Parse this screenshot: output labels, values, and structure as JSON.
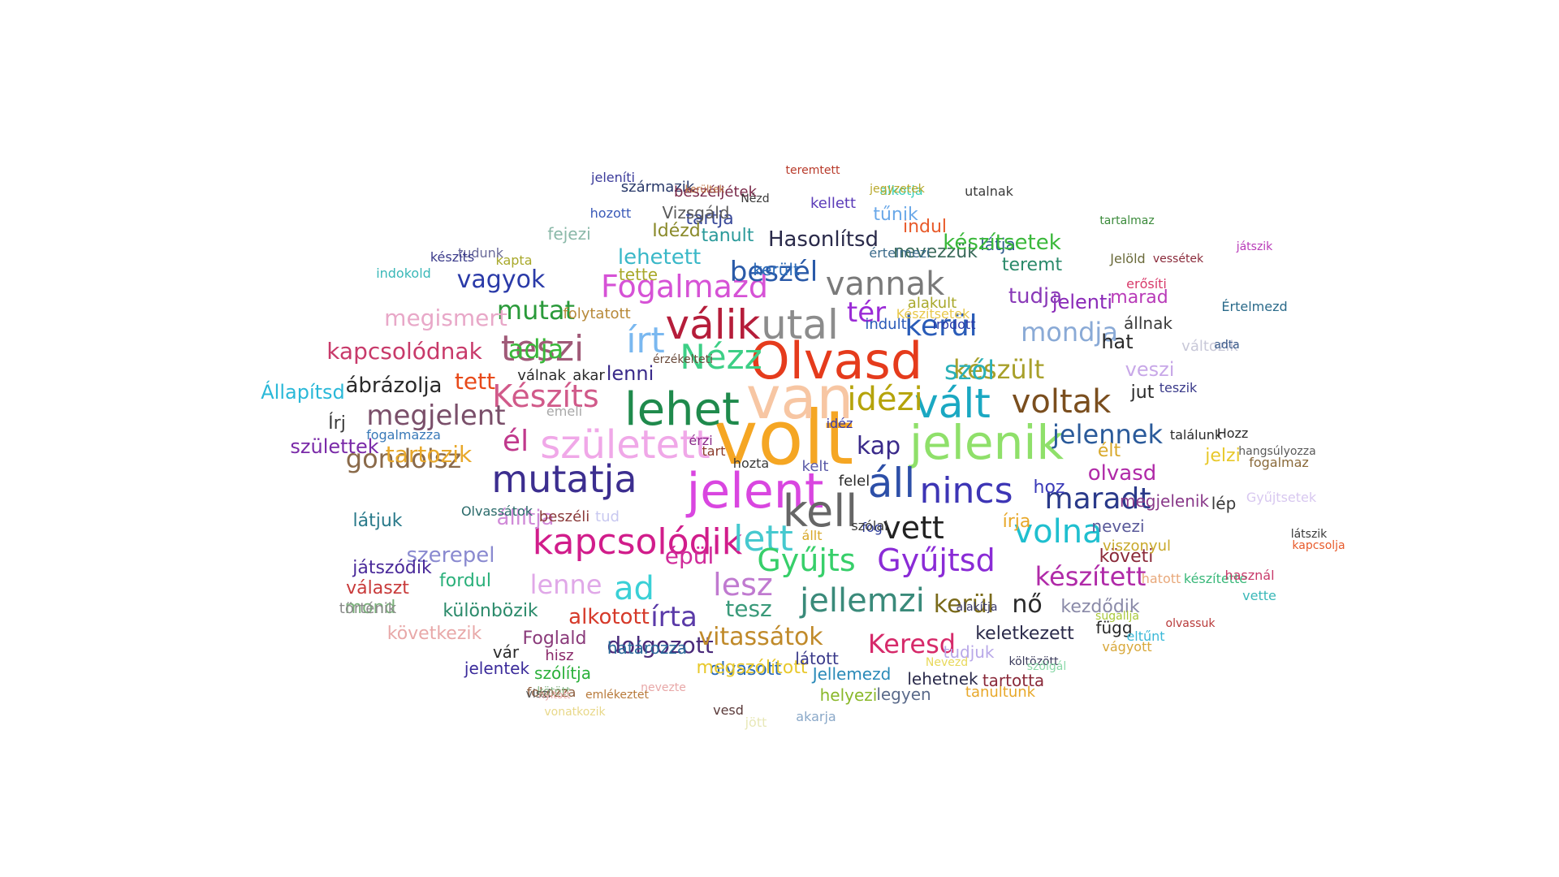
{
  "words": [
    {
      "text": "volt",
      "color": "#f5a623"
    },
    {
      "text": "van",
      "color": "#f7c6a3"
    },
    {
      "text": "Olvasd",
      "color": "#e53b1c"
    },
    {
      "text": "jelent",
      "color": "#d946e0"
    },
    {
      "text": "kell",
      "color": "#666666"
    },
    {
      "text": "lehet",
      "color": "#1f8a4c"
    },
    {
      "text": "jelenik",
      "color": "#8fe06a"
    },
    {
      "text": "mutatja",
      "color": "#3c2e8f"
    },
    {
      "text": "született",
      "color": "#f0a8e8"
    },
    {
      "text": "kapcsolódik",
      "color": "#d11d8b"
    },
    {
      "text": "utal",
      "color": "#8c8c8c"
    },
    {
      "text": "válik",
      "color": "#b51d3a"
    },
    {
      "text": "vált",
      "color": "#1aa8c2"
    },
    {
      "text": "áll",
      "color": "#2d4fa8"
    },
    {
      "text": "nincs",
      "color": "#3d35b5"
    },
    {
      "text": "teszi",
      "color": "#a05a78"
    },
    {
      "text": "írt",
      "color": "#7ab8f0"
    },
    {
      "text": "vannak",
      "color": "#7a7a7a"
    },
    {
      "text": "Nézz",
      "color": "#3dcf86"
    },
    {
      "text": "voltak",
      "color": "#7a4e1e"
    },
    {
      "text": "idézi",
      "color": "#b5a30a"
    },
    {
      "text": "Fogalmazd",
      "color": "#d652d6"
    },
    {
      "text": "lett",
      "color": "#46c9cf"
    },
    {
      "text": "Gyűjts",
      "color": "#37cf6a"
    },
    {
      "text": "Gyűjtsd",
      "color": "#8a2bd6"
    },
    {
      "text": "vett",
      "color": "#222222"
    },
    {
      "text": "volna",
      "color": "#1fbfcf"
    },
    {
      "text": "jellemzi",
      "color": "#3a8a7a"
    },
    {
      "text": "Készíts",
      "color": "#d15a8a"
    },
    {
      "text": "megjelent",
      "color": "#7a4f6a"
    },
    {
      "text": "gondolsz",
      "color": "#8a6a4a"
    },
    {
      "text": "él",
      "color": "#c0398c"
    },
    {
      "text": "maradt",
      "color": "#2a3a8a"
    },
    {
      "text": "jelennek",
      "color": "#2a5a9a"
    },
    {
      "text": "kerül",
      "color": "#2a5cb8"
    },
    {
      "text": "mondja",
      "color": "#8aaad6"
    },
    {
      "text": "beszél",
      "color": "#2a5aa8"
    },
    {
      "text": "készült",
      "color": "#a8a02a"
    },
    {
      "text": "szól",
      "color": "#2ab0b8"
    },
    {
      "text": "tér",
      "color": "#9a2ad6"
    },
    {
      "text": "kap",
      "color": "#3a2a8a"
    },
    {
      "text": "Keresd",
      "color": "#d62a6a"
    },
    {
      "text": "készített",
      "color": "#b02aa8"
    },
    {
      "text": "kerül",
      "color": "#7a6a1a"
    },
    {
      "text": "nő",
      "color": "#2a2a2a"
    },
    {
      "text": "ad",
      "color": "#3ad0d6"
    },
    {
      "text": "lesz",
      "color": "#c07ad0"
    },
    {
      "text": "írta",
      "color": "#5a3aa8"
    },
    {
      "text": "lenne",
      "color": "#e0a8e8"
    },
    {
      "text": "épül",
      "color": "#d02a9a"
    },
    {
      "text": "alkotott",
      "color": "#d63a2a"
    },
    {
      "text": "dolgozott",
      "color": "#4a2a7a"
    },
    {
      "text": "vitassátok",
      "color": "#c08a2a"
    },
    {
      "text": "tesz",
      "color": "#3a9a7a"
    },
    {
      "text": "adja",
      "color": "#3ab83a"
    },
    {
      "text": "mutat",
      "color": "#2a9a3a"
    },
    {
      "text": "vagyok",
      "color": "#2a3aa8"
    },
    {
      "text": "megismert",
      "color": "#e8a8c8"
    },
    {
      "text": "kapcsolódnak",
      "color": "#c83a6a"
    },
    {
      "text": "ábrázolja",
      "color": "#2a2a2a"
    },
    {
      "text": "tett",
      "color": "#e84a1a"
    },
    {
      "text": "tartozik",
      "color": "#e8a82a"
    },
    {
      "text": "születtek",
      "color": "#7a2aa8"
    },
    {
      "text": "Állapítsd",
      "color": "#2ab8d8"
    },
    {
      "text": "Írj",
      "color": "#3a3a3a"
    },
    {
      "text": "állítja",
      "color": "#d08ad8"
    },
    {
      "text": "látjuk",
      "color": "#2a7a8a"
    },
    {
      "text": "szerepel",
      "color": "#8a8ad0"
    },
    {
      "text": "játszódik",
      "color": "#4a2a9a"
    },
    {
      "text": "mond",
      "color": "#7ab07a"
    },
    {
      "text": "fordul",
      "color": "#2ab07a"
    },
    {
      "text": "választ",
      "color": "#c83a3a"
    },
    {
      "text": "különbözik",
      "color": "#2a8a6a"
    },
    {
      "text": "történik",
      "color": "#8a8a8a"
    },
    {
      "text": "következik",
      "color": "#e8a8a8"
    },
    {
      "text": "Foglald",
      "color": "#8a3a7a"
    },
    {
      "text": "vár",
      "color": "#2a2a2a"
    },
    {
      "text": "hisz",
      "color": "#8a2a6a"
    },
    {
      "text": "jelentek",
      "color": "#3a2a9a"
    },
    {
      "text": "szólítja",
      "color": "#2ab03a"
    },
    {
      "text": "határozza",
      "color": "#2a6a9a"
    },
    {
      "text": "olvasott",
      "color": "#2a6ab8"
    },
    {
      "text": "megszólított",
      "color": "#e8c82a"
    },
    {
      "text": "helyezi",
      "color": "#8ab82a"
    },
    {
      "text": "legyen",
      "color": "#5a6a8a"
    },
    {
      "text": "tanultunk",
      "color": "#e8a82a"
    },
    {
      "text": "Jellemezd",
      "color": "#2a8ab8"
    },
    {
      "text": "látott",
      "color": "#3a3a8a"
    },
    {
      "text": "lehetnek",
      "color": "#2a2a4a"
    },
    {
      "text": "tartotta",
      "color": "#8a2a3a"
    },
    {
      "text": "keletkezett",
      "color": "#2a2a4a"
    },
    {
      "text": "tudjuk",
      "color": "#b8a8e8"
    },
    {
      "text": "függ",
      "color": "#2a2a2a"
    },
    {
      "text": "kezdődik",
      "color": "#8a8aa8"
    },
    {
      "text": "nevezi",
      "color": "#5a5a9a"
    },
    {
      "text": "követi",
      "color": "#8a2a3a"
    },
    {
      "text": "viszonyul",
      "color": "#c8a82a"
    },
    {
      "text": "megjelenik",
      "color": "#8a3a8a"
    },
    {
      "text": "olvasd",
      "color": "#b02aa8"
    },
    {
      "text": "élt",
      "color": "#d8a82a"
    },
    {
      "text": "jelzi",
      "color": "#e8c82a"
    },
    {
      "text": "írja",
      "color": "#e8a82a"
    },
    {
      "text": "hoz",
      "color": "#3a3ab8"
    },
    {
      "text": "jut",
      "color": "#2a2a2a"
    },
    {
      "text": "veszi",
      "color": "#c8a8e8"
    },
    {
      "text": "hat",
      "color": "#2a2a2a"
    },
    {
      "text": "állnak",
      "color": "#3a3a3a"
    },
    {
      "text": "marad",
      "color": "#b83ab8"
    },
    {
      "text": "jelenti",
      "color": "#8a2ab8"
    },
    {
      "text": "tudja",
      "color": "#8a3ab8"
    },
    {
      "text": "teremt",
      "color": "#2a8a6a"
    },
    {
      "text": "látja",
      "color": "#2a5a8a"
    },
    {
      "text": "nevezzük",
      "color": "#3a6a5a"
    },
    {
      "text": "készítsetek",
      "color": "#3ab83a"
    },
    {
      "text": "indul",
      "color": "#e85a2a"
    },
    {
      "text": "Hasonlítsd",
      "color": "#2a2a4a"
    },
    {
      "text": "tűnik",
      "color": "#6aa8e8"
    },
    {
      "text": "kellett",
      "color": "#5a3ab8"
    },
    {
      "text": "tartja",
      "color": "#3a4a9a"
    },
    {
      "text": "tanult",
      "color": "#2a9a9a"
    },
    {
      "text": "Idézd",
      "color": "#8a8a2a"
    },
    {
      "text": "fejezi",
      "color": "#8ab8a8"
    },
    {
      "text": "lehetett",
      "color": "#3ab8c8"
    },
    {
      "text": "Vizsgáld",
      "color": "#5a5a5a"
    },
    {
      "text": "hozott",
      "color": "#3a5ab8"
    },
    {
      "text": "származik",
      "color": "#2a3a6a"
    },
    {
      "text": "beszéljétek",
      "color": "#7a2a4a"
    },
    {
      "text": "jeleníti",
      "color": "#3a3a9a"
    },
    {
      "text": "tette",
      "color": "#a8a82a"
    },
    {
      "text": "került",
      "color": "#2a6ab8"
    },
    {
      "text": "alakult",
      "color": "#a8a82a"
    },
    {
      "text": "indult",
      "color": "#2a5ab8"
    },
    {
      "text": "Készítsetek",
      "color": "#e8c84a"
    },
    {
      "text": "íródott",
      "color": "#2a3aa8"
    },
    {
      "text": "alkotja",
      "color": "#3ad0b8"
    },
    {
      "text": "jegyzetek",
      "color": "#b8a82a"
    },
    {
      "text": "teremtett",
      "color": "#b83a2a"
    },
    {
      "text": "utalnak",
      "color": "#3a3a3a"
    },
    {
      "text": "változik",
      "color": "#c8c8d8"
    },
    {
      "text": "teszik",
      "color": "#3a3a8a"
    },
    {
      "text": "Hozz",
      "color": "#2a2a2a"
    },
    {
      "text": "találunk",
      "color": "#2a2a2a"
    },
    {
      "text": "felel",
      "color": "#2a2a2a"
    },
    {
      "text": "kelt",
      "color": "#5a5aa8"
    },
    {
      "text": "idéz",
      "color": "#3a3aa8"
    },
    {
      "text": "fog",
      "color": "#2a3a9a"
    },
    {
      "text": "állt",
      "color": "#d8a82a"
    },
    {
      "text": "szólal",
      "color": "#3a3a3a"
    },
    {
      "text": "hozta",
      "color": "#3a3a3a"
    },
    {
      "text": "érzi",
      "color": "#8a2a8a"
    },
    {
      "text": "tart",
      "color": "#8a3a2a"
    },
    {
      "text": "beszéli",
      "color": "#8a3a3a"
    },
    {
      "text": "tud",
      "color": "#c8c8f0"
    },
    {
      "text": "emeli",
      "color": "#a8a8a8"
    },
    {
      "text": "válnak",
      "color": "#2a2a2a"
    },
    {
      "text": "akar",
      "color": "#2a2a2a"
    },
    {
      "text": "lenni",
      "color": "#3a2a8a"
    },
    {
      "text": "folytatott",
      "color": "#b88a3a"
    },
    {
      "text": "érzékelteti",
      "color": "#6a4a3a"
    },
    {
      "text": "értelmezi",
      "color": "#3a6a8a"
    },
    {
      "text": "kapta",
      "color": "#a8a82a"
    },
    {
      "text": "tudunk",
      "color": "#6a6a9a"
    },
    {
      "text": "készíts",
      "color": "#3a3a8a"
    },
    {
      "text": "indokold",
      "color": "#3ab8b8"
    },
    {
      "text": "fogalmazza",
      "color": "#3a7ab8"
    },
    {
      "text": "Olvassátok",
      "color": "#2a6a6a"
    },
    {
      "text": "Jelöld",
      "color": "#6a6a3a"
    },
    {
      "text": "erősíti",
      "color": "#d83a6a"
    },
    {
      "text": "Értelmezd",
      "color": "#2a6a8a"
    },
    {
      "text": "játszik",
      "color": "#b83ab8"
    },
    {
      "text": "vessétek",
      "color": "#8a2a3a"
    },
    {
      "text": "tartalmaz",
      "color": "#3a8a3a"
    },
    {
      "text": "vette",
      "color": "#3ab8b8"
    },
    {
      "text": "készítette",
      "color": "#3ab87a"
    },
    {
      "text": "hatott",
      "color": "#e8a87a"
    },
    {
      "text": "használ",
      "color": "#c83a6a"
    },
    {
      "text": "sugallja",
      "color": "#a8c83a"
    },
    {
      "text": "vágyott",
      "color": "#d8a83a"
    },
    {
      "text": "olvassuk",
      "color": "#b83a3a"
    },
    {
      "text": "eltűnt",
      "color": "#3ab8d8"
    },
    {
      "text": "fogalmaz",
      "color": "#8a6a3a"
    },
    {
      "text": "Gyűjtsetek",
      "color": "#d8c8f0"
    },
    {
      "text": "látszik",
      "color": "#3a3a3a"
    },
    {
      "text": "kapcsolja",
      "color": "#e85a2a"
    },
    {
      "text": "hangsúlyozza",
      "color": "#5a5a5a"
    },
    {
      "text": "adta",
      "color": "#3a5a8a"
    },
    {
      "text": "lép",
      "color": "#3a3a3a"
    },
    {
      "text": "vesd",
      "color": "#5a3a3a"
    },
    {
      "text": "jött",
      "color": "#e8e8b8"
    },
    {
      "text": "akarja",
      "color": "#8aa8c8"
    },
    {
      "text": "fokozza",
      "color": "#8a5a3a"
    },
    {
      "text": "kötött",
      "color": "#8ab88a"
    },
    {
      "text": "vonatkozik",
      "color": "#e8d88a"
    },
    {
      "text": "viszi",
      "color": "#5a5a5a"
    },
    {
      "text": "nyitott",
      "color": "#e8a8a8"
    },
    {
      "text": "emlékeztet",
      "color": "#b87a3a"
    },
    {
      "text": "nevezte",
      "color": "#e8a8a8"
    },
    {
      "text": "költözött",
      "color": "#3a3a5a"
    },
    {
      "text": "Nevezd",
      "color": "#e8d85a"
    },
    {
      "text": "szólgál",
      "color": "#8ad8a8"
    },
    {
      "text": "alakítja",
      "color": "#3a3a6a"
    },
    {
      "text": "kerültek",
      "color": "#b86a3a"
    },
    {
      "text": "Nézd",
      "color": "#3a3a3a"
    }
  ]
}
